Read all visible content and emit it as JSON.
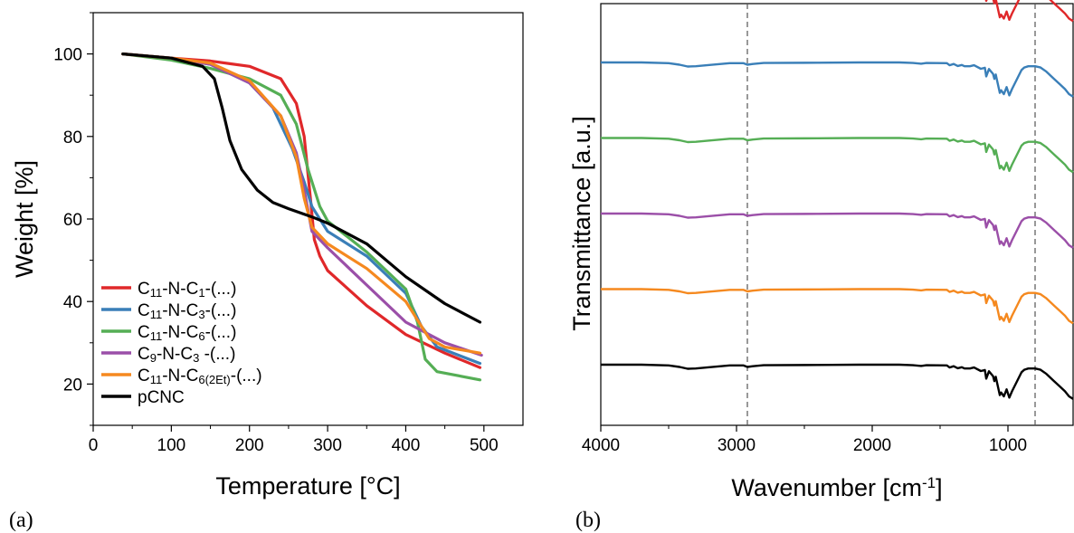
{
  "chart_data": [
    {
      "type": "line",
      "panel_label": "(a)",
      "xlabel": "Temperature [°C]",
      "ylabel": "Weight [%]",
      "xlim": [
        0,
        550
      ],
      "ylim": [
        10,
        110
      ],
      "xticks": [
        0,
        100,
        200,
        300,
        400,
        500
      ],
      "yticks": [
        20,
        40,
        60,
        80,
        100
      ],
      "grid": false,
      "legend_position": "bottom-left",
      "series": [
        {
          "name": "C11-N-C1-(...)",
          "label_parts": [
            [
              "C",
              ""
            ],
            [
              "11",
              "sub"
            ],
            [
              "-N-C",
              ""
            ],
            [
              "1",
              "sub"
            ],
            [
              "-(...)",
              ""
            ]
          ],
          "color": "#e0282a",
          "x": [
            38,
            100,
            150,
            200,
            240,
            260,
            270,
            278,
            283,
            290,
            300,
            350,
            400,
            450,
            495
          ],
          "y": [
            100,
            99,
            98.3,
            97,
            94,
            88,
            80,
            65,
            55,
            51,
            47.5,
            39,
            32,
            27.5,
            24
          ]
        },
        {
          "name": "C11-N-C3-(...)",
          "label_parts": [
            [
              "C",
              ""
            ],
            [
              "11",
              "sub"
            ],
            [
              "-N-C",
              ""
            ],
            [
              "3",
              "sub"
            ],
            [
              "-(...)",
              ""
            ]
          ],
          "color": "#3a7fb8",
          "x": [
            38,
            100,
            150,
            200,
            230,
            255,
            270,
            280,
            300,
            350,
            400,
            420,
            440,
            495
          ],
          "y": [
            100,
            99,
            97.5,
            93,
            87,
            77,
            69,
            63,
            57,
            51,
            42,
            34,
            29,
            25
          ]
        },
        {
          "name": "C11-N-C6-(...)",
          "label_parts": [
            [
              "C",
              ""
            ],
            [
              "11",
              "sub"
            ],
            [
              "-N-C",
              ""
            ],
            [
              "6",
              "sub"
            ],
            [
              "-(...)",
              ""
            ]
          ],
          "color": "#55ae55",
          "x": [
            38,
            100,
            150,
            200,
            240,
            260,
            275,
            290,
            300,
            350,
            400,
            415,
            425,
            440,
            495
          ],
          "y": [
            100,
            98.5,
            96.5,
            94,
            90,
            83,
            72,
            63,
            59.5,
            52,
            43,
            35,
            26,
            23,
            21
          ]
        },
        {
          "name": "C9-N-C3 -(...)",
          "label_parts": [
            [
              "C",
              ""
            ],
            [
              "9",
              "sub"
            ],
            [
              "-N-C",
              ""
            ],
            [
              "3",
              "sub"
            ],
            [
              " -(...)",
              ""
            ]
          ],
          "color": "#9b4fa8",
          "x": [
            38,
            100,
            150,
            200,
            240,
            260,
            270,
            280,
            300,
            350,
            400,
            450,
            497
          ],
          "y": [
            100,
            99,
            97.5,
            93,
            85,
            76,
            67,
            57,
            53,
            44,
            35,
            30,
            27
          ]
        },
        {
          "name": "C11-N-C6(2Et)-(...)",
          "label_parts": [
            [
              "C",
              ""
            ],
            [
              "11",
              "sub"
            ],
            [
              "-N-C",
              ""
            ],
            [
              "6(2Et)",
              "sub"
            ],
            [
              "-(...)",
              ""
            ]
          ],
          "color": "#f5891f",
          "x": [
            38,
            100,
            150,
            200,
            240,
            260,
            270,
            280,
            300,
            350,
            400,
            430,
            450,
            495
          ],
          "y": [
            100,
            99,
            97.8,
            93.5,
            85,
            75,
            65,
            58,
            54,
            48,
            40,
            31,
            29,
            27.5
          ]
        },
        {
          "name": "pCNC",
          "label_parts": [
            [
              "pCNC",
              ""
            ]
          ],
          "color": "#000000",
          "x": [
            38,
            100,
            140,
            155,
            165,
            175,
            190,
            210,
            230,
            250,
            280,
            300,
            350,
            400,
            450,
            495
          ],
          "y": [
            100,
            99,
            97,
            94,
            87,
            79,
            72,
            67,
            64,
            62.5,
            60.5,
            59,
            54,
            46,
            39.5,
            35
          ]
        }
      ]
    },
    {
      "type": "line",
      "panel_label": "(b)",
      "xlabel": "Wavenumber [cm",
      "xlabel_sup": "-1",
      "xlabel_end": "]",
      "ylabel": "Transmittance [a.u.]",
      "xlim": [
        4000,
        520
      ],
      "reversed_x": true,
      "xticks": [
        4000,
        3000,
        2000,
        1000
      ],
      "yticks": [],
      "grid": false,
      "reference_lines": [
        2920,
        800
      ],
      "stack_offset": 1,
      "spectrum_points": [
        [
          4000,
          0
        ],
        [
          3700,
          0
        ],
        [
          3500,
          -0.06
        ],
        [
          3420,
          -0.18
        ],
        [
          3360,
          -0.32
        ],
        [
          3300,
          -0.3
        ],
        [
          3200,
          -0.2
        ],
        [
          3050,
          -0.06
        ],
        [
          2950,
          -0.06
        ],
        [
          2920,
          -0.18
        ],
        [
          2880,
          -0.12
        ],
        [
          2800,
          -0.04
        ],
        [
          2400,
          -0.02
        ],
        [
          2100,
          0
        ],
        [
          1800,
          0
        ],
        [
          1700,
          -0.04
        ],
        [
          1640,
          -0.1
        ],
        [
          1600,
          -0.04
        ],
        [
          1450,
          -0.06
        ],
        [
          1430,
          -0.22
        ],
        [
          1400,
          -0.12
        ],
        [
          1370,
          -0.28
        ],
        [
          1340,
          -0.2
        ],
        [
          1320,
          -0.3
        ],
        [
          1280,
          -0.3
        ],
        [
          1250,
          -0.22
        ],
        [
          1200,
          -0.5
        ],
        [
          1170,
          -0.42
        ],
        [
          1160,
          -1.1
        ],
        [
          1140,
          -0.52
        ],
        [
          1110,
          -0.9
        ],
        [
          1100,
          -1.3
        ],
        [
          1090,
          -0.95
        ],
        [
          1060,
          -2.4
        ],
        [
          1050,
          -2.2
        ],
        [
          1030,
          -2.5
        ],
        [
          1010,
          -1.95
        ],
        [
          990,
          -2.6
        ],
        [
          970,
          -2.1
        ],
        [
          900,
          -0.6
        ],
        [
          880,
          -0.4
        ],
        [
          850,
          -0.3
        ],
        [
          800,
          -0.3
        ],
        [
          760,
          -0.4
        ],
        [
          720,
          -0.7
        ],
        [
          660,
          -1.3
        ],
        [
          620,
          -1.7
        ],
        [
          580,
          -2.1
        ],
        [
          550,
          -2.5
        ],
        [
          520,
          -2.7
        ]
      ],
      "series": [
        {
          "color": "#e0282a",
          "level": 5
        },
        {
          "color": "#3a7fb8",
          "level": 4
        },
        {
          "color": "#55ae55",
          "level": 3
        },
        {
          "color": "#9b4fa8",
          "level": 2
        },
        {
          "color": "#f5891f",
          "level": 1
        },
        {
          "color": "#000000",
          "level": 0
        }
      ]
    }
  ]
}
